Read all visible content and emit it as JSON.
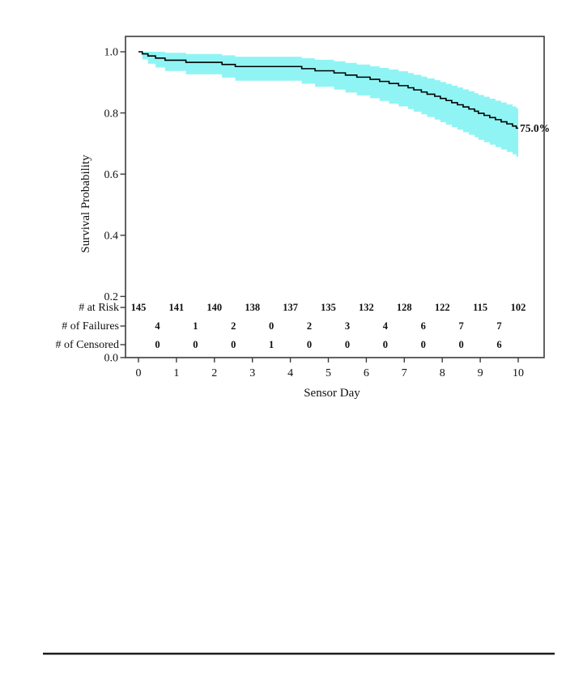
{
  "figure": {
    "annotation_label": "75.0%"
  },
  "chart_data": {
    "type": "line",
    "subtype": "kaplan-meier-step-with-confidence-band",
    "title": "",
    "xlabel": "Sensor Day",
    "ylabel": "Survival Probability",
    "xlim": [
      -0.35,
      10.7
    ],
    "ylim": [
      0.0,
      1.05
    ],
    "grid": false,
    "legend": "none",
    "x_ticks": [
      0,
      1,
      2,
      3,
      4,
      5,
      6,
      7,
      8,
      9,
      10
    ],
    "y_ticks": [
      "0.0",
      "0.2",
      "0.4",
      "0.6",
      "0.8",
      "1.0"
    ],
    "final_label": "75.0%",
    "final_value": 0.75,
    "line_color": "#000000",
    "band_color": "#90F4F4",
    "steps": {
      "t": [
        0.1,
        0.25,
        0.45,
        0.7,
        1.25,
        2.2,
        2.55,
        4.3,
        4.65,
        5.15,
        5.45,
        5.75,
        6.1,
        6.35,
        6.6,
        6.85,
        7.1,
        7.25,
        7.45,
        7.6,
        7.8,
        7.95,
        8.1,
        8.25,
        8.4,
        8.55,
        8.7,
        8.85,
        8.95,
        9.1,
        9.25,
        9.4,
        9.55,
        9.7,
        9.85,
        9.95
      ],
      "s": [
        0.9931,
        0.9862,
        0.9793,
        0.9724,
        0.9655,
        0.9586,
        0.9517,
        0.9448,
        0.9378,
        0.9309,
        0.9239,
        0.917,
        0.91,
        0.9031,
        0.8962,
        0.8892,
        0.8823,
        0.8753,
        0.8684,
        0.8614,
        0.8545,
        0.8475,
        0.8406,
        0.8336,
        0.8267,
        0.8197,
        0.8128,
        0.8058,
        0.7989,
        0.792,
        0.785,
        0.7781,
        0.7711,
        0.7642,
        0.7572,
        0.7503
      ],
      "hi": [
        1.0,
        1.0,
        1.0,
        0.9967,
        0.9928,
        0.9883,
        0.9837,
        0.9789,
        0.9739,
        0.9688,
        0.9635,
        0.9582,
        0.9528,
        0.9473,
        0.9418,
        0.9361,
        0.9305,
        0.9247,
        0.9189,
        0.913,
        0.9072,
        0.9012,
        0.8953,
        0.8893,
        0.8833,
        0.8771,
        0.8711,
        0.8649,
        0.8588,
        0.8527,
        0.8464,
        0.8402,
        0.8339,
        0.8277,
        0.8213,
        0.815
      ],
      "lo": [
        0.9752,
        0.961,
        0.9486,
        0.9373,
        0.9261,
        0.9157,
        0.9055,
        0.8955,
        0.8857,
        0.8762,
        0.8667,
        0.8574,
        0.8482,
        0.8392,
        0.8303,
        0.8214,
        0.8127,
        0.804,
        0.7955,
        0.7868,
        0.7784,
        0.7699,
        0.7616,
        0.7532,
        0.745,
        0.7367,
        0.7286,
        0.7205,
        0.7124,
        0.7044,
        0.6963,
        0.6884,
        0.6804,
        0.6725,
        0.6646,
        0.6568
      ]
    },
    "risk_table": {
      "rows": [
        {
          "label": "# at Risk",
          "x": [
            0,
            1,
            2,
            3,
            4,
            5,
            6,
            7,
            8,
            9,
            10
          ],
          "values": [
            "145",
            "141",
            "140",
            "138",
            "137",
            "135",
            "132",
            "128",
            "122",
            "115",
            "102"
          ]
        },
        {
          "label": "# of Failures",
          "x": [
            0.5,
            1.5,
            2.5,
            3.5,
            4.5,
            5.5,
            6.5,
            7.5,
            8.5,
            9.5
          ],
          "values": [
            "4",
            "1",
            "2",
            "0",
            "2",
            "3",
            "4",
            "6",
            "7",
            "7"
          ]
        },
        {
          "label": "# of Censored",
          "x": [
            0.5,
            1.5,
            2.5,
            3.5,
            4.5,
            5.5,
            6.5,
            7.5,
            8.5,
            9.5
          ],
          "values": [
            "0",
            "0",
            "0",
            "1",
            "0",
            "0",
            "0",
            "0",
            "0",
            "6"
          ]
        }
      ]
    }
  }
}
